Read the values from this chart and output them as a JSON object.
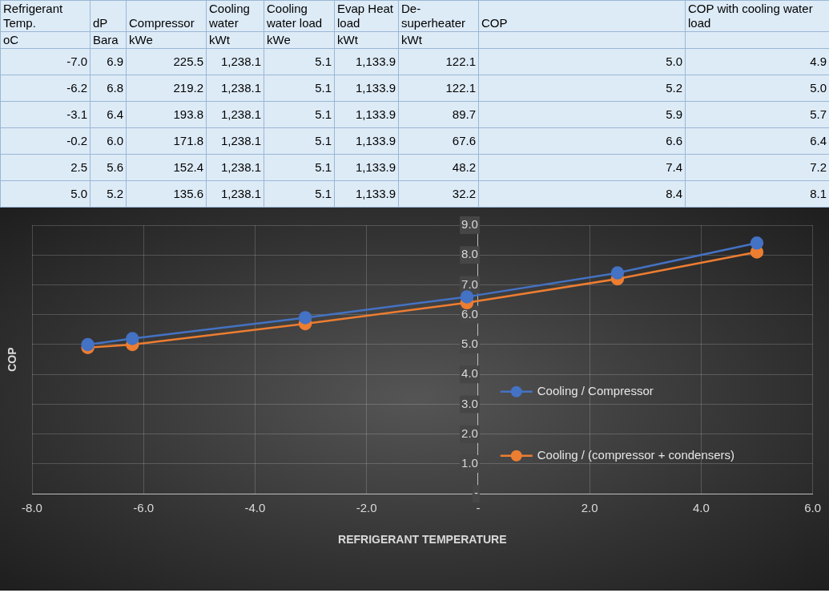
{
  "chart_data": [
    {
      "type": "other",
      "categories": [
        "Refrigerant Temp.",
        "dP",
        "Compressor",
        "Cooling water",
        "Cooling water load",
        "Evap Heat load",
        "De-superheater",
        "COP",
        "COP with cooling water load"
      ],
      "cell_labels": [
        [
          "oC",
          "Bara",
          "kWe",
          "kWt",
          "kWe",
          "kWt",
          "kWt",
          null,
          null
        ],
        [
          "-7.0",
          "6.9",
          "225.5",
          "1,238.1",
          "5.1",
          "1,133.9",
          "122.1",
          "5.0",
          "4.9"
        ],
        [
          "-6.2",
          "6.8",
          "219.2",
          "1,238.1",
          "5.1",
          "1,133.9",
          "122.1",
          "5.2",
          "5.0"
        ],
        [
          "-3.1",
          "6.4",
          "193.8",
          "1,238.1",
          "5.1",
          "1,133.9",
          "89.7",
          "5.9",
          "5.7"
        ],
        [
          "-0.2",
          "6.0",
          "171.8",
          "1,238.1",
          "5.1",
          "1,133.9",
          "67.6",
          "6.6",
          "6.4"
        ],
        [
          "2.5",
          "5.6",
          "152.4",
          "1,238.1",
          "5.1",
          "1,133.9",
          "48.2",
          "7.4",
          "7.2"
        ],
        [
          "5.0",
          "5.2",
          "135.6",
          "1,238.1",
          "5.1",
          "1,133.9",
          "32.2",
          "8.4",
          "8.1"
        ]
      ]
    },
    {
      "type": "line",
      "xlabel": "REFRIGERANT TEMPERATURE",
      "ylabel": "COP",
      "x": [
        -7.0,
        -6.2,
        -3.1,
        -0.2,
        2.5,
        5.0
      ],
      "series": [
        {
          "name": "Cooling / Compressor",
          "color": "#4472c4",
          "values": [
            5.0,
            5.2,
            5.9,
            6.6,
            7.4,
            8.4
          ]
        },
        {
          "name": "Cooling / (compressor + condensers)",
          "color": "#ed7d31",
          "values": [
            4.9,
            5.0,
            5.7,
            6.4,
            7.2,
            8.1
          ]
        }
      ],
      "xlim": [
        -8,
        6
      ],
      "xticks": [
        {
          "value": -8,
          "label": "-8.0"
        },
        {
          "value": -6,
          "label": "-6.0"
        },
        {
          "value": -4,
          "label": "-4.0"
        },
        {
          "value": -2,
          "label": "-2.0"
        },
        {
          "value": 0,
          "label": "-"
        },
        {
          "value": 2,
          "label": "2.0"
        },
        {
          "value": 4,
          "label": "4.0"
        },
        {
          "value": 6,
          "label": "6.0"
        }
      ],
      "ylim": [
        0,
        9
      ],
      "yticks": [
        {
          "value": 0,
          "label": "-"
        },
        {
          "value": 1,
          "label": "1.0"
        },
        {
          "value": 2,
          "label": "2.0"
        },
        {
          "value": 3,
          "label": "3.0"
        },
        {
          "value": 4,
          "label": "4.0"
        },
        {
          "value": 5,
          "label": "5.0"
        },
        {
          "value": 6,
          "label": "6.0"
        },
        {
          "value": 7,
          "label": "7.0"
        },
        {
          "value": 8,
          "label": "8.0"
        },
        {
          "value": 9,
          "label": "9.0"
        }
      ],
      "grid": true,
      "legend": "right",
      "marker": "circle",
      "line_style": "solid"
    }
  ]
}
